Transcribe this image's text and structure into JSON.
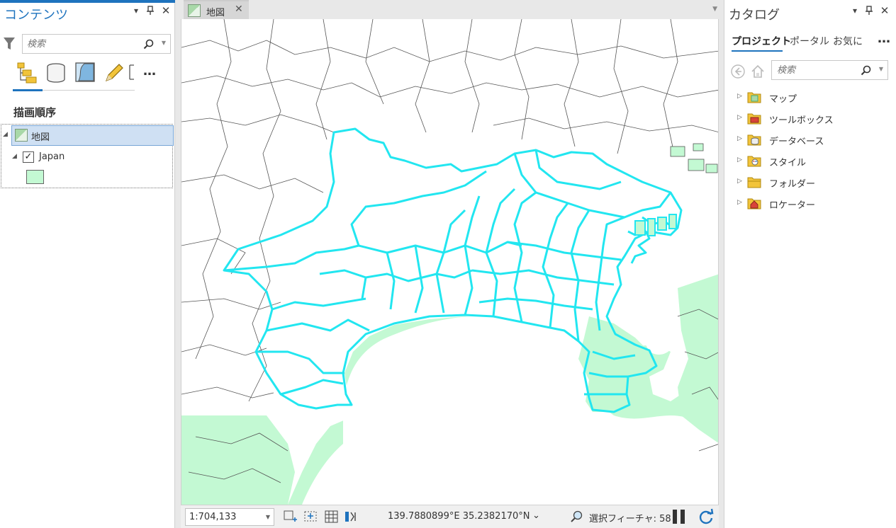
{
  "contents_pane": {
    "title": "コンテンツ",
    "search_placeholder": "検索",
    "section_title": "描画順序",
    "map_item": "地図",
    "layer_name": "Japan",
    "layer_checked": true,
    "symbol_color": "#c3f9d3"
  },
  "map_view": {
    "tab_label": "地図",
    "scale": "1:704,133",
    "coordinates": "139.7880899°E 35.2382170°N",
    "selected_features": "選択フィーチャ: 58",
    "fill_color": "#c3f9d3",
    "selection_outline_color": "#22e6f0"
  },
  "catalog_pane": {
    "title": "カタログ",
    "tabs": [
      "プロジェクト",
      "ポータル",
      "お気に"
    ],
    "search_placeholder": "検索",
    "items": [
      {
        "label": "マップ",
        "icon": "map-folder-icon"
      },
      {
        "label": "ツールボックス",
        "icon": "toolbox-folder-icon"
      },
      {
        "label": "データベース",
        "icon": "database-folder-icon"
      },
      {
        "label": "スタイル",
        "icon": "style-folder-icon"
      },
      {
        "label": "フォルダー",
        "icon": "folder-icon"
      },
      {
        "label": "ロケーター",
        "icon": "locator-folder-icon"
      }
    ]
  }
}
